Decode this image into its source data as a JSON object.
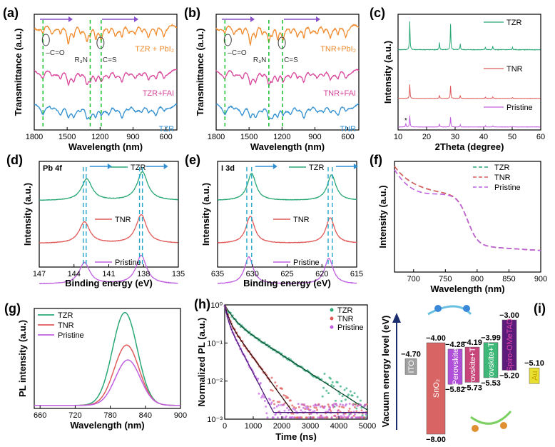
{
  "panel_labels": [
    "(a)",
    "(b)",
    "(c)",
    "(d)",
    "(e)",
    "(f)",
    "(g)",
    "(h)",
    "(i)"
  ],
  "colors": {
    "TZR": "#2aa876",
    "TNR": "#e05a5a",
    "Pristine": "#c060e0",
    "ftir_top": "#f08a2c",
    "ftir_mid": "#d8449a",
    "ftir_bot": "#2f8fd0",
    "i_series": "#6a2fa8",
    "guide": "#25c33a"
  },
  "chart_data": [
    {
      "panel": "(a)",
      "type": "line",
      "xlabel": "Wavelength (nm)",
      "ylabel": "Transmittance (a.u.)",
      "xlim": [
        1800,
        500
      ],
      "xticks": [
        "1800",
        "1500",
        "1200",
        "900",
        "600"
      ],
      "series": [
        {
          "name": "TZR + PbI₂"
        },
        {
          "name": "TZR+FAI"
        },
        {
          "name": "TZR"
        }
      ],
      "annotations": [
        "C=O",
        "R₃N",
        "C=S"
      ],
      "guide_lines_x": [
        1720,
        1290,
        1190
      ]
    },
    {
      "panel": "(b)",
      "type": "line",
      "xlabel": "Wavelength (nm)",
      "ylabel": "Transmittance (a.u.)",
      "xlim": [
        1800,
        500
      ],
      "xticks": [
        "1800",
        "1500",
        "1200",
        "900",
        "600"
      ],
      "series": [
        {
          "name": "TNR+PbI₂"
        },
        {
          "name": "TNR+FAI"
        },
        {
          "name": "TNR"
        }
      ],
      "annotations": [
        "C=O",
        "R₃N",
        "C=S"
      ],
      "guide_lines_x": [
        1720,
        1320,
        1195
      ]
    },
    {
      "panel": "(c)",
      "type": "line",
      "xlabel": "2Theta (degree)",
      "ylabel": "Intensity (a.u.)",
      "xlim": [
        10,
        60
      ],
      "xticks": [
        "10",
        "20",
        "30",
        "40",
        "50",
        "60"
      ],
      "series": [
        {
          "name": "TZR",
          "peaks": [
            [
              14.1,
              1.0
            ],
            [
              24.5,
              0.25
            ],
            [
              28.4,
              0.9
            ],
            [
              31.8,
              0.2
            ],
            [
              40.6,
              0.1
            ],
            [
              43.2,
              0.12
            ],
            [
              50.1,
              0.08
            ]
          ]
        },
        {
          "name": "TNR",
          "peaks": [
            [
              14.1,
              0.9
            ],
            [
              24.5,
              0.2
            ],
            [
              28.4,
              0.8
            ],
            [
              31.8,
              0.18
            ],
            [
              40.6,
              0.08
            ],
            [
              43.2,
              0.1
            ],
            [
              50.1,
              0.06
            ]
          ]
        },
        {
          "name": "Pristine",
          "peaks": [
            [
              12.7,
              0.25
            ],
            [
              14.1,
              0.8
            ],
            [
              24.5,
              0.22
            ],
            [
              28.4,
              0.7
            ],
            [
              31.8,
              0.15
            ],
            [
              40.6,
              0.08
            ],
            [
              43.2,
              0.08
            ],
            [
              50.1,
              0.05
            ]
          ]
        }
      ],
      "marker_note": "*"
    },
    {
      "panel": "(d)",
      "type": "line",
      "title": "Pb 4f",
      "xlabel": "Binding energy (eV)",
      "ylabel": "Intensity (a.u.)",
      "xlim": [
        147,
        135
      ],
      "xticks": [
        "147",
        "144",
        "141",
        "138",
        "135"
      ],
      "series": [
        {
          "name": "TZR",
          "peaks": [
            142.9,
            138.1
          ]
        },
        {
          "name": "TNR",
          "peaks": [
            143.1,
            138.2
          ]
        },
        {
          "name": "Pristine",
          "peaks": [
            143.1,
            138.2
          ]
        }
      ],
      "guide_lines_x": [
        143.2,
        142.95,
        138.35,
        138.1
      ]
    },
    {
      "panel": "(e)",
      "type": "line",
      "title": "I 3d",
      "xlabel": "Binding energy (eV)",
      "ylabel": "Intensity (a.u.)",
      "xlim": [
        635,
        615
      ],
      "xticks": [
        "635",
        "630",
        "625",
        "620",
        "615"
      ],
      "series": [
        {
          "name": "TZR",
          "peaks": [
            630.1,
            618.6
          ]
        },
        {
          "name": "TNR",
          "peaks": [
            630.3,
            618.8
          ]
        },
        {
          "name": "Pristine",
          "peaks": [
            630.5,
            619.0
          ]
        }
      ],
      "guide_lines_x": [
        630.8,
        630.1,
        619.1,
        618.5
      ]
    },
    {
      "panel": "(f)",
      "type": "line",
      "xlabel": "Wavelength (nm)",
      "ylabel": "Intensity (a.u.)",
      "xlim": [
        670,
        900
      ],
      "xticks": [
        "700",
        "750",
        "800",
        "850",
        "900"
      ],
      "series": [
        {
          "name": "TZR"
        },
        {
          "name": "TNR"
        },
        {
          "name": "Pristine"
        }
      ]
    },
    {
      "panel": "(g)",
      "type": "line",
      "xlabel": "Wavelength (nm)",
      "ylabel": "PL intensity (a.u.)",
      "xlim": [
        650,
        900
      ],
      "xticks": [
        "660",
        "720",
        "780",
        "840",
        "900"
      ],
      "series": [
        {
          "name": "TZR",
          "peak_x": 805,
          "peak_y": 1.0
        },
        {
          "name": "TNR",
          "peak_x": 808,
          "peak_y": 0.65
        },
        {
          "name": "Pristine",
          "peak_x": 810,
          "peak_y": 0.49
        }
      ]
    },
    {
      "panel": "(h)",
      "type": "scatter",
      "xlabel": "Time (ns)",
      "ylabel": "Normalized PL (a.u.)",
      "xlim": [
        0,
        5000
      ],
      "ylim": [
        0.001,
        1
      ],
      "y_scale": "log",
      "xticks": [
        "0",
        "1000",
        "2000",
        "3000",
        "4000",
        "5000"
      ],
      "yticks": [
        "10⁰",
        "10⁻¹",
        "10⁻²",
        "10⁻³"
      ],
      "series": [
        {
          "name": "TZR",
          "tau_ns": 900
        },
        {
          "name": "TNR",
          "tau_ns": 420
        },
        {
          "name": "Pristine",
          "tau_ns": 300
        }
      ]
    },
    {
      "panel": "(i)",
      "type": "diagram",
      "ylabel": "Vacuum energy level (eV)",
      "levels": [
        {
          "label": "ITO",
          "top": "−4.70"
        },
        {
          "label": "SnO₂",
          "top": "−4.00",
          "bottom": "−8.00"
        },
        {
          "label": "Perovskite",
          "top": "−4.28",
          "bottom": "−5.82"
        },
        {
          "label": "Perovskite+TNR",
          "top": "−4.19",
          "bottom": "−5.73"
        },
        {
          "label": "Perovskite+TZR",
          "top": "−3.99",
          "bottom": "−5.53"
        },
        {
          "label": "Spiro-OMeTAD",
          "top": "−3.00",
          "bottom": "−5.20"
        },
        {
          "label": "Au",
          "top": "−5.10"
        }
      ]
    }
  ],
  "annotation_texts": {
    "a_top": "TZR + PbI₂",
    "a_mid": "TZR+FAI",
    "a_bot": "TZR",
    "b_top": "TNR+PbI₂",
    "b_mid": "TNR+FAI",
    "b_bot": "TNR"
  }
}
